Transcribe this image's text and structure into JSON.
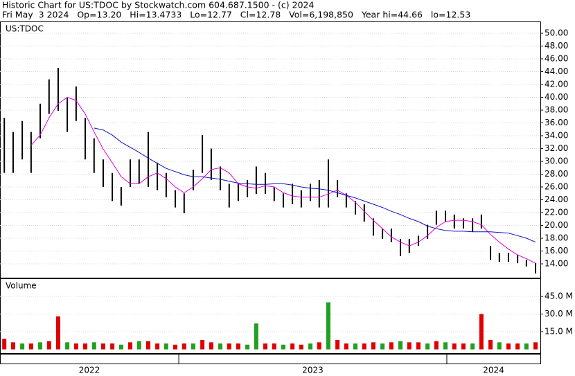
{
  "chart_data": {
    "type": "ohlc",
    "title": "Historic Chart for US:TDOC by Stockwatch.com 604.687.1500 - (c) 2024",
    "subtitle": "Fri May  3 2024   Op=13.20   Hi=13.4733   Lo=12.77   Cl=12.78   Vol=6,198,850   Year hi=44.66   lo=12.53",
    "label": "US:TDOC",
    "bar_color": "#000000",
    "grid": true,
    "x": [
      2022.349,
      2022.382,
      2022.416,
      2022.449,
      2022.483,
      2022.516,
      2022.55,
      2022.584,
      2022.617,
      2022.651,
      2022.684,
      2022.718,
      2022.752,
      2022.785,
      2022.819,
      2022.852,
      2022.886,
      2022.92,
      2022.953,
      2022.987,
      2023.02,
      2023.054,
      2023.088,
      2023.121,
      2023.155,
      2023.188,
      2023.222,
      2023.256,
      2023.289,
      2023.323,
      2023.356,
      2023.39,
      2023.424,
      2023.457,
      2023.491,
      2023.524,
      2023.558,
      2023.592,
      2023.625,
      2023.659,
      2023.692,
      2023.726,
      2023.76,
      2023.793,
      2023.827,
      2023.86,
      2023.894,
      2023.928,
      2023.961,
      2023.995,
      2024.028,
      2024.062,
      2024.096,
      2024.129,
      2024.163,
      2024.196,
      2024.23,
      2024.264,
      2024.297,
      2024.331
    ],
    "xlim": [
      2022.333,
      2024.349
    ],
    "year_dividers": [
      2023,
      2024
    ],
    "year_labels": [
      "2022",
      "2023",
      "2024"
    ],
    "high": [
      36.8,
      34.6,
      36.3,
      34.6,
      39,
      42.8,
      44.6,
      40,
      41.7,
      36.8,
      33.6,
      30.3,
      28.2,
      26,
      30.3,
      30.3,
      34.6,
      29.8,
      28.2,
      25.5,
      25,
      28.7,
      34.1,
      32,
      29.2,
      26.5,
      26.5,
      27.1,
      29.2,
      28.2,
      26,
      25,
      26.5,
      25.5,
      26.5,
      27.1,
      30.3,
      27.1,
      25,
      23.8,
      23.3,
      21.1,
      19.5,
      19.5,
      17.9,
      17.9,
      18.4,
      20.1,
      22.3,
      22.3,
      21.7,
      21.1,
      21.1,
      21.7,
      16.8,
      15.7,
      15.7,
      15.4,
      14.6,
      14.1
    ],
    "low": [
      28.2,
      28.2,
      30.3,
      28.2,
      33.6,
      37.4,
      37.9,
      34.6,
      36.3,
      30.3,
      28.2,
      26,
      23.8,
      23.1,
      26,
      26.5,
      26,
      25.5,
      24.4,
      22.8,
      21.9,
      25.5,
      28.2,
      27.1,
      25.5,
      22.8,
      23.8,
      24.4,
      24.9,
      24.9,
      23.8,
      22.8,
      23.3,
      22.8,
      23.8,
      22.8,
      22.8,
      24.4,
      22.8,
      21.7,
      20.6,
      18.4,
      17.9,
      17.4,
      15.2,
      15.7,
      16.8,
      17.9,
      20.1,
      20.6,
      19.5,
      19.5,
      19,
      19.5,
      14.6,
      14.3,
      14.3,
      14.1,
      13.6,
      12.5
    ],
    "series": [
      {
        "color": "#e000e0",
        "values": [
          null,
          null,
          null,
          32.5,
          34.1,
          36.8,
          39,
          40,
          39.5,
          37.4,
          34.6,
          31.9,
          29.8,
          27.6,
          26.5,
          26.5,
          27.6,
          28.2,
          27.3,
          26,
          25.1,
          26,
          27.3,
          28.7,
          29,
          28.2,
          26.5,
          26,
          25.8,
          26.2,
          26,
          25.1,
          24.6,
          24.4,
          24.4,
          24.4,
          24.9,
          25.5,
          24.7,
          23.6,
          22.2,
          20.8,
          19.5,
          18.2,
          17.4,
          16.8,
          17.4,
          18.4,
          19.7,
          20.6,
          20.8,
          20.8,
          20.6,
          20.1,
          18.6,
          17.4,
          16.3,
          15.4,
          14.8,
          14.1
        ]
      },
      {
        "color": "#1010c0",
        "values": [
          null,
          null,
          null,
          null,
          null,
          null,
          null,
          null,
          null,
          null,
          35.2,
          34.9,
          34.1,
          33,
          32.2,
          31.4,
          30.5,
          29.7,
          28.9,
          28.4,
          27.9,
          27.6,
          27.6,
          27.4,
          27.2,
          26.9,
          26.6,
          26.5,
          26.4,
          26.4,
          26.5,
          26.5,
          26.3,
          26,
          25.8,
          25.7,
          25.5,
          25.1,
          24.7,
          24.3,
          23.8,
          23.3,
          22.8,
          22.2,
          21.7,
          21.1,
          20.6,
          19.9,
          19.5,
          19.2,
          19.1,
          19.1,
          19,
          19,
          19,
          18.9,
          18.8,
          18.4,
          18,
          17.4
        ]
      }
    ],
    "ylim": [
      11.95,
      51.73
    ],
    "yticks": [
      {
        "value": 14,
        "label": "14.00"
      },
      {
        "value": 16,
        "label": "16.00"
      },
      {
        "value": 18,
        "label": "18.00"
      },
      {
        "value": 20,
        "label": "20.00"
      },
      {
        "value": 22,
        "label": "22.00"
      },
      {
        "value": 24,
        "label": "24.00"
      },
      {
        "value": 26,
        "label": "26.00"
      },
      {
        "value": 28,
        "label": "28.00"
      },
      {
        "value": 30,
        "label": "30.00"
      },
      {
        "value": 32,
        "label": "32.00"
      },
      {
        "value": 34,
        "label": "34.00"
      },
      {
        "value": 36,
        "label": "36.00"
      },
      {
        "value": 38,
        "label": "38.00"
      },
      {
        "value": 40,
        "label": "40.00"
      },
      {
        "value": 42,
        "label": "42.00"
      },
      {
        "value": 44,
        "label": "44.00"
      },
      {
        "value": 46,
        "label": "46.00"
      },
      {
        "value": 48,
        "label": "48.00"
      },
      {
        "value": 50,
        "label": "50.00"
      }
    ],
    "volume": {
      "label": "Volume",
      "values": [
        9,
        6,
        5,
        5,
        6,
        7,
        28,
        6,
        5,
        5,
        6,
        5,
        5,
        4,
        6,
        7,
        7,
        5,
        5,
        4,
        5,
        5,
        8,
        6,
        5,
        5,
        5,
        4,
        22,
        5,
        5,
        4,
        5,
        4,
        5,
        6,
        40,
        8,
        5,
        5,
        5,
        6,
        5,
        6,
        7,
        6,
        6,
        5,
        7,
        6,
        5,
        5,
        5,
        30,
        8,
        6,
        5,
        5,
        5,
        6
      ],
      "colors": [
        "#e00000",
        "#e00000",
        "#20a020",
        "#e00000",
        "#20a020",
        "#e00000",
        "#e00000",
        "#20a020",
        "#e00000",
        "#e00000",
        "#20a020",
        "#e00000",
        "#e00000",
        "#20a020",
        "#e00000",
        "#20a020",
        "#e00000",
        "#e00000",
        "#20a020",
        "#e00000",
        "#e00000",
        "#20a020",
        "#e00000",
        "#e00000",
        "#20a020",
        "#e00000",
        "#e00000",
        "#20a020",
        "#20a020",
        "#e00000",
        "#e00000",
        "#20a020",
        "#e00000",
        "#e00000",
        "#20a020",
        "#e00000",
        "#20a020",
        "#e00000",
        "#e00000",
        "#20a020",
        "#e00000",
        "#e00000",
        "#20a020",
        "#e00000",
        "#20a020",
        "#e00000",
        "#e00000",
        "#20a020",
        "#e00000",
        "#20a020",
        "#e00000",
        "#e00000",
        "#20a020",
        "#e00000",
        "#e00000",
        "#20a020",
        "#e00000",
        "#e00000",
        "#20a020",
        "#e00000"
      ],
      "ylim": [
        -3.2,
        60.3
      ],
      "yticks": [
        {
          "value": 15,
          "label": "15.0 M"
        },
        {
          "value": 30,
          "label": "30.0 M"
        },
        {
          "value": 45,
          "label": "45.0 M"
        }
      ]
    }
  }
}
